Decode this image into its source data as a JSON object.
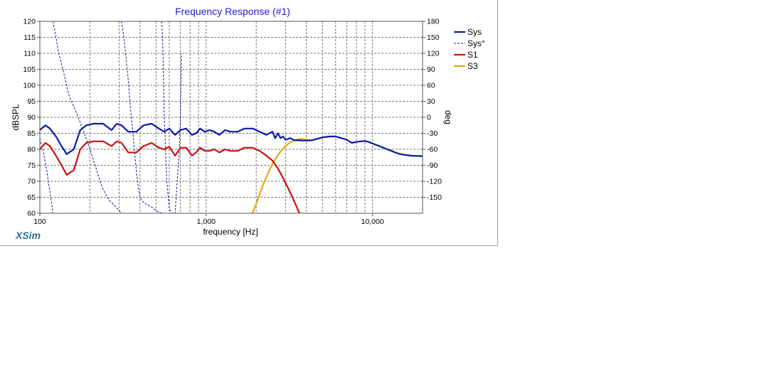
{
  "app": {
    "brand": "XSim"
  },
  "chart_data": {
    "type": "line",
    "title": "Frequency Response (#1)",
    "xlabel": "frequency [Hz]",
    "ylabel": "dBSPL",
    "y2label": "deg",
    "xscale": "log",
    "xlim": [
      100,
      20000
    ],
    "ylim": [
      60,
      120
    ],
    "y2lim": [
      -180,
      180
    ],
    "xticks": [
      100,
      1000,
      10000
    ],
    "xtick_labels": [
      "100",
      "1,000",
      "10,000"
    ],
    "yticks": [
      60,
      65,
      70,
      75,
      80,
      85,
      90,
      95,
      100,
      105,
      110,
      115,
      120
    ],
    "y2ticks": [
      -150,
      -120,
      -90,
      -60,
      -30,
      0,
      30,
      60,
      90,
      120,
      150,
      180
    ],
    "grid": true,
    "legend_position": "right",
    "series": [
      {
        "name": "Sys",
        "axis": "left",
        "color": "#0a1aa8",
        "style": "solid",
        "x": [
          100,
          108,
          115,
          125,
          135,
          145,
          160,
          175,
          190,
          210,
          240,
          270,
          290,
          310,
          340,
          380,
          420,
          470,
          520,
          560,
          600,
          650,
          700,
          760,
          820,
          870,
          920,
          980,
          1050,
          1120,
          1200,
          1300,
          1400,
          1550,
          1700,
          1900,
          2100,
          2300,
          2500,
          2600,
          2700,
          2800,
          2900,
          3000,
          3200,
          3400,
          3600,
          3800,
          4000,
          4300,
          4600,
          5000,
          5500,
          6000,
          6500,
          7000,
          7500,
          8000,
          8500,
          9000,
          9500,
          10000,
          11000,
          12000,
          13000,
          14000,
          15000,
          16000,
          17000,
          18000,
          19000,
          20000
        ],
        "y": [
          86,
          87.5,
          86.5,
          84,
          81,
          78.5,
          80,
          86,
          87.5,
          88,
          88,
          86,
          88,
          87.5,
          85.5,
          85.5,
          87.5,
          88,
          86.5,
          85.5,
          86.5,
          84.5,
          86,
          86.5,
          84.5,
          85,
          86.5,
          85.5,
          86,
          85.5,
          84.5,
          86,
          85.5,
          85.5,
          86.5,
          86.5,
          85.5,
          84.5,
          85.5,
          83.5,
          85,
          83.5,
          84,
          83,
          83.5,
          82.8,
          82.8,
          82.7,
          82.7,
          82.8,
          83.2,
          83.7,
          84,
          84,
          83.5,
          83,
          82,
          82.3,
          82.5,
          82.6,
          82.3,
          81.8,
          81,
          80.2,
          79.5,
          78.8,
          78.4,
          78.2,
          78,
          77.9,
          77.9,
          77.8
        ]
      },
      {
        "name": "Sys°",
        "axis": "right",
        "color": "#0a1aa8",
        "style": "dashed",
        "segments": [
          {
            "x": [
              100,
              105,
              110,
              115,
              120
            ],
            "y": [
              -40,
              -65,
              -100,
              -140,
              -180
            ]
          },
          {
            "x": [
              120,
              125,
              130,
              140,
              150,
              160,
              170,
              180,
              190,
              200,
              210,
              220,
              230,
              240,
              250,
              260,
              270,
              280,
              290,
              300,
              310
            ],
            "y": [
              180,
              150,
              120,
              80,
              40,
              20,
              0,
              -20,
              -40,
              -60,
              -80,
              -100,
              -120,
              -135,
              -145,
              -155,
              -160,
              -165,
              -170,
              -175,
              -180
            ]
          },
          {
            "x": [
              310,
              320,
              330,
              340,
              350,
              360,
              370,
              380,
              390,
              400,
              420,
              450,
              480,
              500,
              520,
              540
            ],
            "y": [
              180,
              150,
              110,
              70,
              20,
              -20,
              -60,
              -100,
              -130,
              -150,
              -160,
              -165,
              -170,
              -175,
              -178,
              -180
            ]
          },
          {
            "x": [
              540,
              545,
              550,
              555,
              560,
              570,
              580,
              600,
              620,
              650,
              670,
              690,
              700,
              705,
              710
            ],
            "y": [
              180,
              160,
              120,
              60,
              0,
              -60,
              -120,
              -170,
              -180,
              -180,
              -120,
              -60,
              0,
              60,
              120
            ]
          }
        ]
      },
      {
        "name": "S1",
        "axis": "left",
        "color": "#cc1111",
        "style": "solid",
        "x": [
          100,
          108,
          115,
          125,
          135,
          145,
          160,
          175,
          190,
          210,
          240,
          270,
          290,
          310,
          340,
          380,
          420,
          470,
          520,
          560,
          600,
          650,
          700,
          760,
          820,
          870,
          920,
          980,
          1050,
          1120,
          1200,
          1300,
          1400,
          1550,
          1700,
          1900,
          2100,
          2300,
          2500,
          2700,
          2900,
          3100,
          3300,
          3500,
          3600,
          3700
        ],
        "y": [
          80,
          82,
          81,
          78,
          75,
          72,
          73.5,
          80,
          82,
          82.5,
          82.5,
          81,
          82.5,
          82,
          79,
          79,
          81,
          82,
          80.5,
          80,
          80.8,
          78,
          80.5,
          80.5,
          78,
          79,
          80.5,
          79.5,
          79.5,
          80,
          79,
          80,
          79.5,
          79.5,
          80.5,
          80.5,
          79.5,
          78,
          76.5,
          74,
          71,
          68,
          65,
          62,
          60.5,
          59
        ]
      },
      {
        "name": "S3",
        "axis": "left",
        "color": "#e0a810",
        "style": "solid",
        "x": [
          1900,
          2000,
          2100,
          2200,
          2350,
          2500,
          2650,
          2800,
          3000,
          3200,
          3400,
          3600,
          3800,
          4000,
          4300,
          4600,
          5000,
          5500,
          6000,
          6500,
          7000,
          7500,
          8000,
          8500,
          9000,
          9500,
          10000,
          11000,
          12000,
          13000,
          14000,
          15000,
          16000,
          17000,
          18000,
          19000,
          20000
        ],
        "y": [
          60,
          63,
          66,
          69,
          72.5,
          75.5,
          77.5,
          79.3,
          81,
          82.2,
          82.8,
          83.2,
          83.2,
          83,
          82.8,
          83.2,
          83.7,
          84,
          84,
          83.5,
          83,
          82,
          82.3,
          82.5,
          82.6,
          82.3,
          81.8,
          81,
          80.2,
          79.5,
          78.8,
          78.4,
          78.2,
          78,
          77.9,
          77.9,
          77.8
        ]
      }
    ]
  }
}
